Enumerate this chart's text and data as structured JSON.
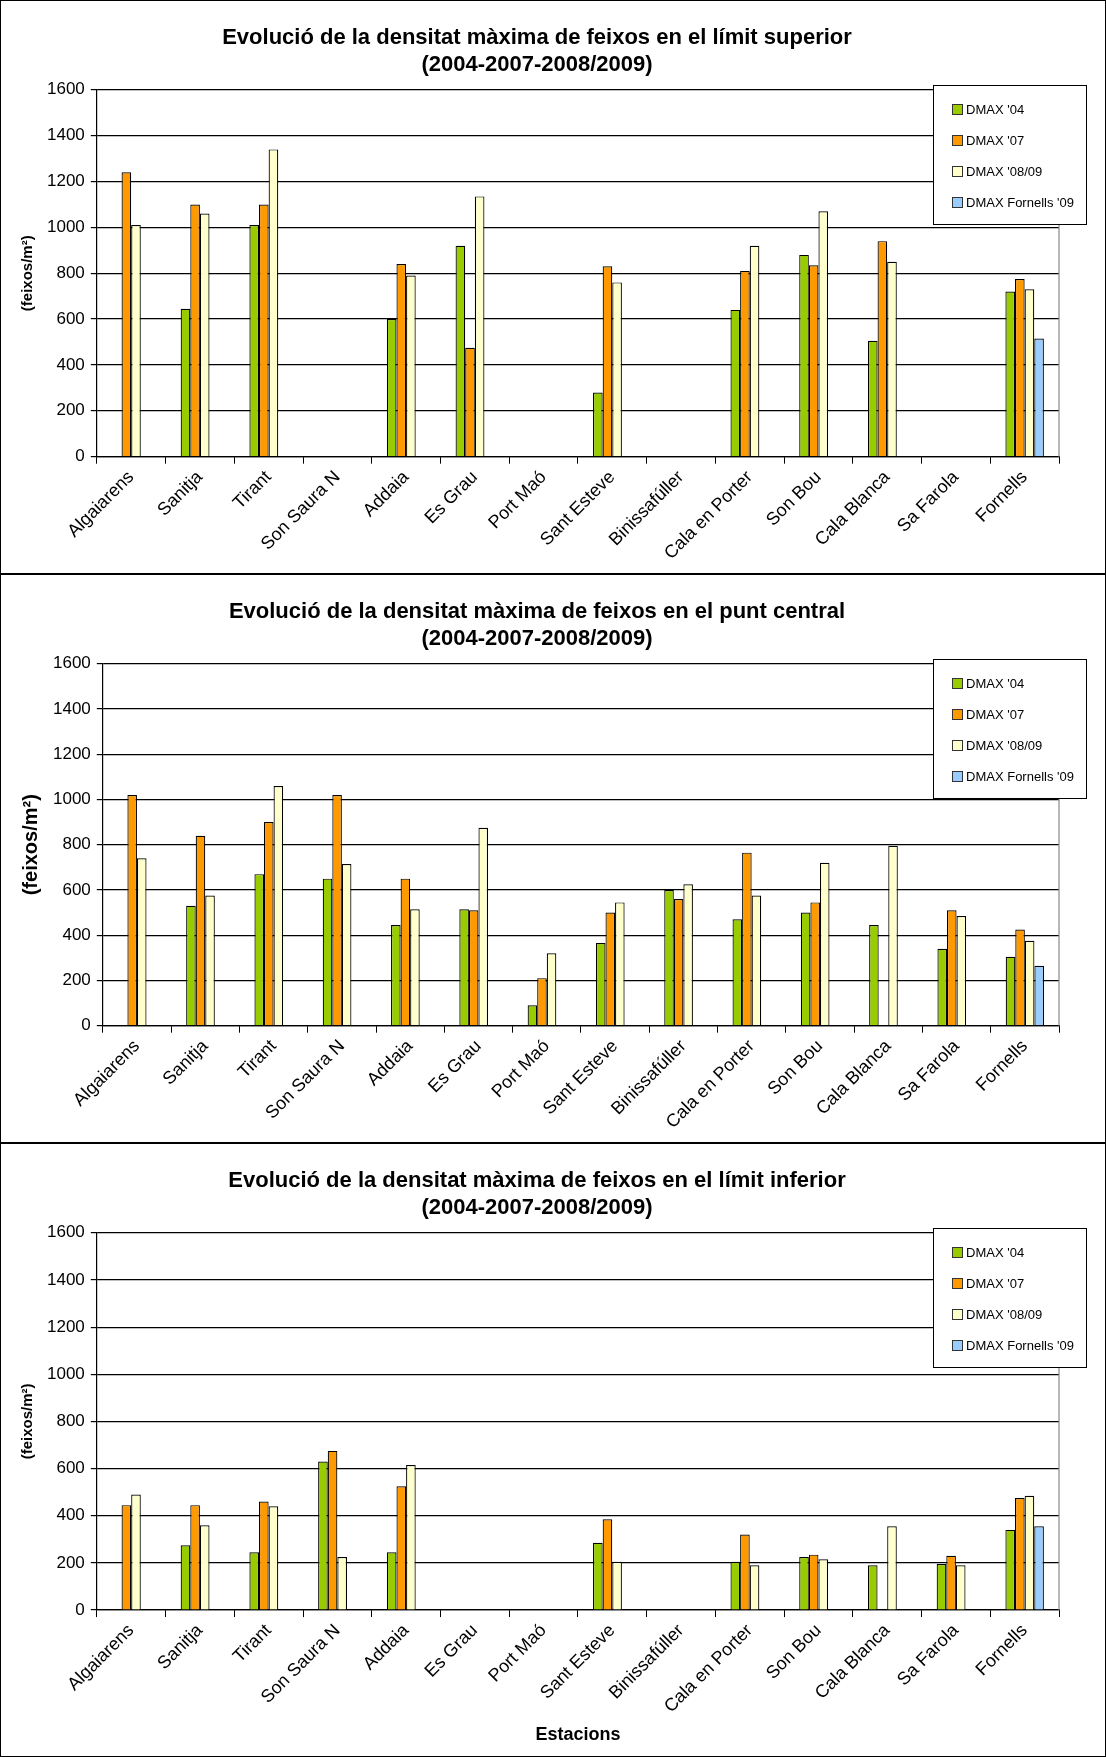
{
  "chart_data": [
    {
      "type": "bar",
      "title": "Evolució de la densitat màxima de feixos en el límit superior",
      "subtitle": "(2004-2007-2008/2009)",
      "ylabel": "(feixos/m²)",
      "categories": [
        "Algaiarens",
        "Sanitja",
        "Tirant",
        "Son Saura N",
        "Addaia",
        "Es Grau",
        "Port Maó",
        "Sant Esteve",
        "Binissafúller",
        "Cala en Porter",
        "Son Bou",
        "Cala Blanca",
        "Sa Farola",
        "Fornells"
      ],
      "series": [
        {
          "name": "DMAX '04",
          "color": "#99cc00",
          "values": [
            null,
            645,
            1010,
            null,
            600,
            920,
            null,
            280,
            null,
            640,
            880,
            505,
            null,
            720
          ]
        },
        {
          "name": "DMAX '07",
          "color": "#ff9900",
          "values": [
            1240,
            1100,
            1100,
            null,
            840,
            475,
            null,
            830,
            null,
            810,
            835,
            940,
            null,
            775
          ]
        },
        {
          "name": "DMAX '08/09",
          "color": "#ffffcc",
          "values": [
            1010,
            1060,
            1340,
            null,
            790,
            1135,
            null,
            760,
            null,
            920,
            1070,
            850,
            null,
            730
          ]
        },
        {
          "name": "DMAX Fornells '09",
          "color": "#99ccff",
          "values": [
            null,
            null,
            null,
            null,
            null,
            null,
            null,
            null,
            null,
            null,
            null,
            null,
            null,
            515
          ]
        }
      ],
      "ylim": [
        0,
        1600
      ],
      "yticks": [
        0,
        200,
        400,
        600,
        800,
        1000,
        1200,
        1400,
        1600
      ],
      "grid": "y",
      "legend": "top right"
    },
    {
      "type": "bar",
      "title": "Evolució de la densitat màxima de feixos en el punt central",
      "subtitle": "(2004-2007-2008/2009)",
      "ylabel": "(feixos/m²)",
      "categories": [
        "Algaiarens",
        "Sanitja",
        "Tirant",
        "Son Saura N",
        "Addaia",
        "Es Grau",
        "Port Maó",
        "Sant Esteve",
        "Binissafúller",
        "Cala en Porter",
        "Son Bou",
        "Cala Blanca",
        "Sa Farola",
        "Fornells"
      ],
      "series": [
        {
          "name": "DMAX '04",
          "color": "#99cc00",
          "values": [
            null,
            530,
            670,
            650,
            445,
            515,
            90,
            365,
            600,
            470,
            500,
            445,
            340,
            305
          ]
        },
        {
          "name": "DMAX '07",
          "color": "#ff9900",
          "values": [
            1020,
            840,
            900,
            1020,
            650,
            510,
            210,
            500,
            560,
            765,
            545,
            null,
            510,
            425
          ]
        },
        {
          "name": "DMAX '08/09",
          "color": "#ffffcc",
          "values": [
            740,
            575,
            1060,
            715,
            515,
            875,
            320,
            545,
            625,
            575,
            720,
            795,
            485,
            375
          ]
        },
        {
          "name": "DMAX Fornells '09",
          "color": "#99ccff",
          "values": [
            null,
            null,
            null,
            null,
            null,
            null,
            null,
            null,
            null,
            null,
            null,
            null,
            null,
            265
          ]
        }
      ],
      "ylim": [
        0,
        1600
      ],
      "yticks": [
        0,
        200,
        400,
        600,
        800,
        1000,
        1200,
        1400,
        1600
      ],
      "grid": "y",
      "legend": "top right"
    },
    {
      "type": "bar",
      "title": "Evolució de la densitat màxima de feixos en el límit inferior",
      "subtitle": "(2004-2007-2008/2009)",
      "xlabel": "Estacions",
      "ylabel": "(feixos/m²)",
      "categories": [
        "Algaiarens",
        "Sanitja",
        "Tirant",
        "Son Saura N",
        "Addaia",
        "Es Grau",
        "Port Maó",
        "Sant Esteve",
        "Binissafúller",
        "Cala en Porter",
        "Son Bou",
        "Cala Blanca",
        "Sa Farola",
        "Fornells"
      ],
      "series": [
        {
          "name": "DMAX '04",
          "color": "#99cc00",
          "values": [
            null,
            275,
            245,
            630,
            245,
            null,
            null,
            285,
            null,
            205,
            225,
            190,
            195,
            340
          ]
        },
        {
          "name": "DMAX '07",
          "color": "#ff9900",
          "values": [
            445,
            445,
            460,
            675,
            525,
            null,
            null,
            385,
            null,
            320,
            235,
            null,
            230,
            475
          ]
        },
        {
          "name": "DMAX '08/09",
          "color": "#ffffcc",
          "values": [
            490,
            360,
            440,
            225,
            615,
            null,
            null,
            205,
            null,
            190,
            215,
            355,
            190,
            485
          ]
        },
        {
          "name": "DMAX Fornells '09",
          "color": "#99ccff",
          "values": [
            null,
            null,
            null,
            null,
            null,
            null,
            null,
            null,
            null,
            null,
            null,
            null,
            null,
            355
          ]
        }
      ],
      "ylim": [
        0,
        1600
      ],
      "yticks": [
        0,
        200,
        400,
        600,
        800,
        1000,
        1200,
        1400,
        1600
      ],
      "grid": "y",
      "legend": "top right"
    }
  ]
}
